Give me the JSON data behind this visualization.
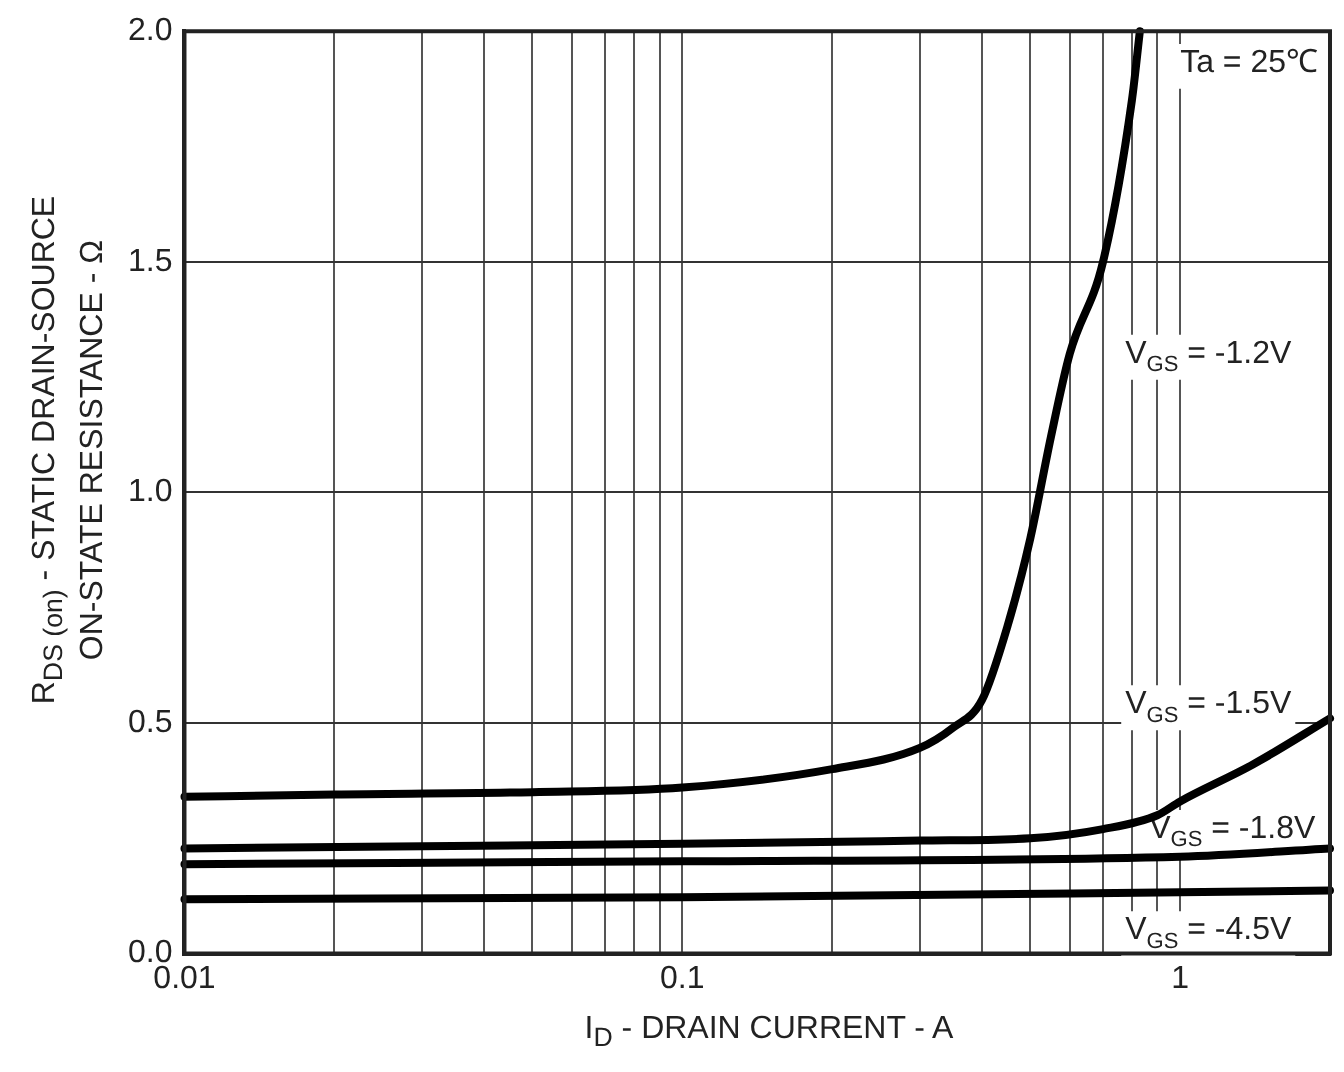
{
  "chart_data": {
    "type": "line",
    "xlabel": "I$_{D}$ - DRAIN CURRENT - A",
    "ylabel": "R$_{DS (on)}$ - STATIC DRAIN-SOURCE ON-STATE RESISTANCE - Ω",
    "log": "x",
    "grid": true,
    "legend": false,
    "marker": "none",
    "line_style": "solid",
    "xlim": [
      0.01,
      2
    ],
    "ylim": [
      0,
      2
    ],
    "xticks": [
      0.01,
      {
        "value": 0.02,
        "label": null
      },
      {
        "value": 0.03,
        "label": null
      },
      {
        "value": 0.04,
        "label": null
      },
      {
        "value": 0.05,
        "label": null
      },
      {
        "value": 0.06,
        "label": null
      },
      {
        "value": 0.07,
        "label": null
      },
      {
        "value": 0.08,
        "label": null
      },
      {
        "value": 0.09,
        "label": null
      },
      0.1,
      {
        "value": 0.2,
        "label": null
      },
      {
        "value": 0.3,
        "label": null
      },
      {
        "value": 0.4,
        "label": null
      },
      {
        "value": 0.5,
        "label": null
      },
      {
        "value": 0.6,
        "label": null
      },
      {
        "value": 0.7,
        "label": null
      },
      {
        "value": 0.8,
        "label": null
      },
      {
        "value": 0.9,
        "label": null
      },
      1
    ],
    "yticks": [
      {
        "value": 0,
        "label": "0.0"
      },
      {
        "value": 0.5,
        "label": "0.5"
      },
      {
        "value": 1,
        "label": "1.0"
      },
      {
        "value": 1.5,
        "label": "1.5"
      },
      {
        "value": 2,
        "label": "2.0"
      }
    ],
    "series": [
      {
        "name": "V$_{GS}$ = -1.2V",
        "color": "#000000",
        "x": [
          0.01,
          0.02,
          0.05,
          0.1,
          0.2,
          0.3,
          0.35,
          0.4,
          0.45,
          0.5,
          0.55,
          0.6,
          0.7,
          0.8,
          0.83
        ],
        "values": [
          0.34,
          0.345,
          0.35,
          0.36,
          0.4,
          0.446,
          0.49,
          0.55,
          0.71,
          0.9,
          1.12,
          1.3,
          1.5,
          1.85,
          2.0
        ]
      },
      {
        "name": "V$_{GS}$ = -1.5V",
        "color": "#000000",
        "x": [
          0.01,
          0.1,
          0.3,
          0.5,
          0.7,
          0.9,
          1,
          1.4,
          2
        ],
        "values": [
          0.228,
          0.238,
          0.245,
          0.25,
          0.27,
          0.3,
          0.33,
          0.41,
          0.51
        ]
      },
      {
        "name": "V$_{GS}$ = -1.8V",
        "color": "#000000",
        "x": [
          0.01,
          0.1,
          1,
          2
        ],
        "values": [
          0.194,
          0.2,
          0.21,
          0.228
        ]
      },
      {
        "name": "V$_{GS}$ = -4.5V",
        "color": "#000000",
        "x": [
          0.01,
          0.1,
          1,
          2
        ],
        "values": [
          0.118,
          0.122,
          0.133,
          0.137
        ]
      }
    ],
    "annotations": [
      "Ta = 25℃"
    ]
  }
}
